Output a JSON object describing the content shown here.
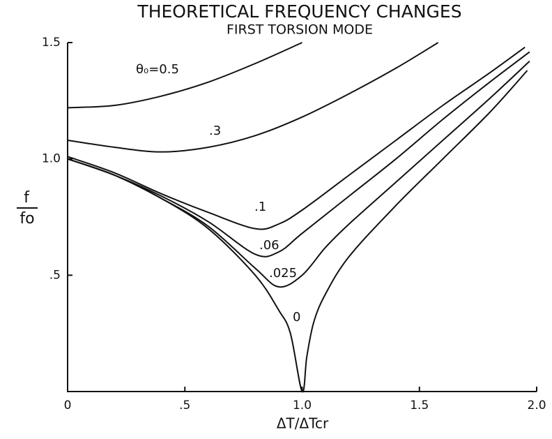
{
  "chart_data": {
    "type": "line",
    "title": "THEORETICAL FREQUENCY CHANGES",
    "subtitle": "FIRST TORSION MODE",
    "x_label": "ΔT/ΔTcr",
    "y_label": {
      "numerator": "f",
      "denominator": "fo"
    },
    "series": [
      {
        "name": "θ₀=0.5",
        "color": "#111111",
        "x": [
          0,
          0.2,
          0.4,
          0.6,
          0.8,
          1.0
        ],
        "values": [
          1.22,
          1.23,
          1.27,
          1.33,
          1.41,
          1.5
        ]
      },
      {
        "name": ".3",
        "color": "#111111",
        "x": [
          0,
          0.2,
          0.4,
          0.6,
          0.8,
          1.0,
          1.2,
          1.4,
          1.58
        ],
        "values": [
          1.08,
          1.05,
          1.03,
          1.05,
          1.1,
          1.18,
          1.28,
          1.39,
          1.5
        ]
      },
      {
        "name": ".1",
        "color": "#111111",
        "x": [
          0,
          0.2,
          0.4,
          0.6,
          0.8,
          0.9,
          1.0,
          1.2,
          1.4,
          1.6,
          1.8,
          1.95
        ],
        "values": [
          1.01,
          0.94,
          0.85,
          0.77,
          0.7,
          0.72,
          0.78,
          0.93,
          1.08,
          1.23,
          1.37,
          1.48
        ]
      },
      {
        "name": ".06",
        "color": "#111111",
        "x": [
          0,
          0.2,
          0.4,
          0.6,
          0.8,
          0.9,
          1.0,
          1.2,
          1.4,
          1.6,
          1.8,
          1.97
        ],
        "values": [
          1.0,
          0.93,
          0.84,
          0.73,
          0.59,
          0.6,
          0.68,
          0.84,
          1.0,
          1.17,
          1.33,
          1.46
        ]
      },
      {
        "name": ".025",
        "color": "#111111",
        "x": [
          0,
          0.2,
          0.4,
          0.6,
          0.8,
          0.9,
          1.0,
          1.1,
          1.2,
          1.4,
          1.6,
          1.8,
          1.97
        ],
        "values": [
          1.0,
          0.93,
          0.83,
          0.71,
          0.53,
          0.45,
          0.5,
          0.62,
          0.72,
          0.9,
          1.08,
          1.26,
          1.42
        ]
      },
      {
        "name": "0",
        "color": "#111111",
        "x": [
          0,
          0.2,
          0.4,
          0.6,
          0.8,
          0.9,
          0.95,
          1.0,
          1.02,
          1.05,
          1.1,
          1.2,
          1.4,
          1.6,
          1.8,
          1.96
        ],
        "values": [
          1.0,
          0.93,
          0.83,
          0.7,
          0.5,
          0.35,
          0.25,
          0.0,
          0.15,
          0.3,
          0.42,
          0.58,
          0.8,
          1.0,
          1.2,
          1.38
        ]
      }
    ],
    "xlim": [
      0,
      2
    ],
    "ylim": [
      0,
      1.5
    ],
    "xticks": [
      0,
      {
        "value": 0.5,
        "label": ".5"
      },
      {
        "value": 1,
        "label": "1.0"
      },
      1.5,
      {
        "value": 2,
        "label": "2.0"
      }
    ],
    "yticks": [
      {
        "value": 0.5,
        "label": ".5"
      },
      {
        "value": 1,
        "label": "1.0"
      },
      1.5
    ]
  }
}
